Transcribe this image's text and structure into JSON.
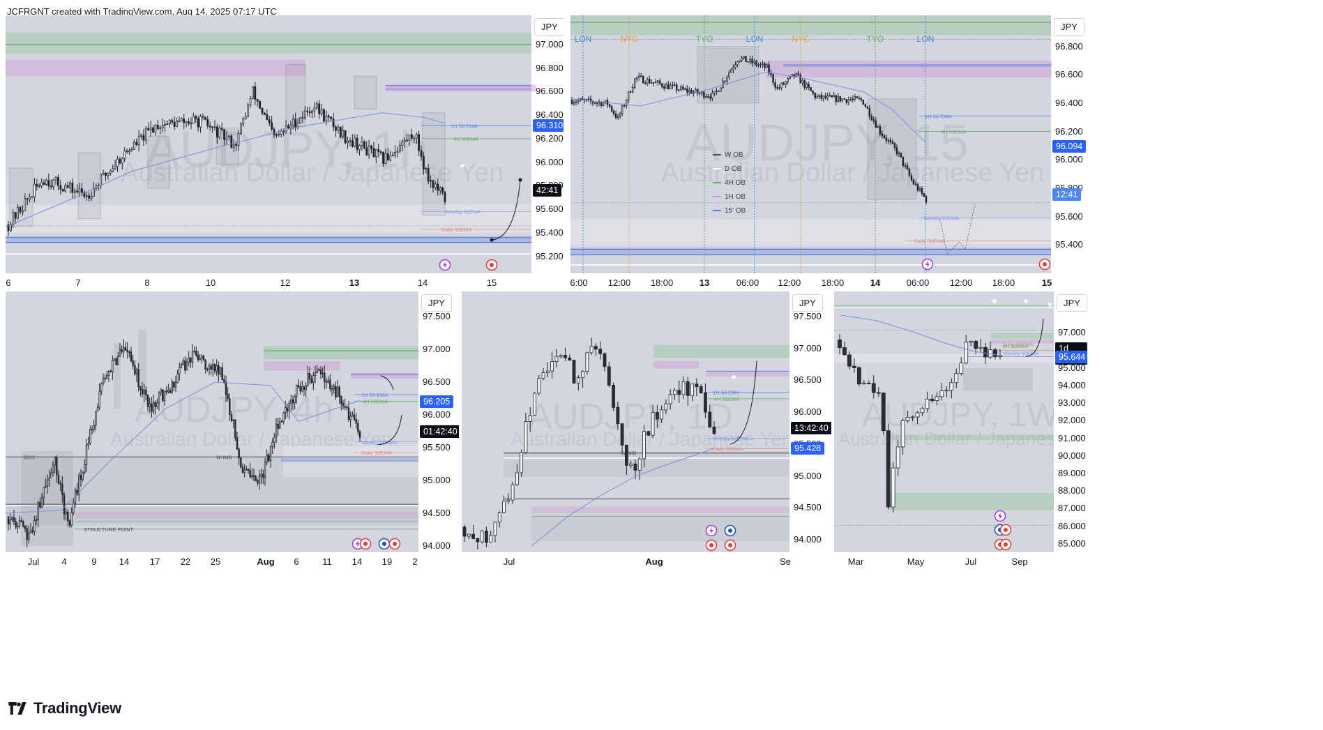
{
  "header": {
    "text": "JCFRGNT created with TradingView.com, Aug 14, 2025 07:17 UTC"
  },
  "footer": {
    "brand": "TradingView"
  },
  "colors": {
    "bg": "#d3d6de",
    "candle": "#1e2128",
    "ema": "#7b8fd8",
    "green_zone": "rgba(76,175,80,0.22)",
    "pink_zone": "rgba(206,147,216,0.38)",
    "blue_line": "#5b7de6",
    "label_blue": "#2962ff",
    "label_black": "#0c0e15"
  },
  "chart_data": [
    {
      "id": "p1",
      "type": "candlestick",
      "title": "AUDJPY, 1h",
      "subtitle": "Australian Dollar / Japanese Yen",
      "currency": "JPY",
      "ylim": [
        95.08,
        97.2
      ],
      "yticks": [
        "97.000",
        "96.800",
        "96.600",
        "96.400",
        "96.200",
        "96.000",
        "95.800",
        "95.600",
        "95.400",
        "95.200"
      ],
      "xticks": [
        "6",
        "7",
        "8",
        "10",
        "12",
        "13",
        "14",
        "15"
      ],
      "price_labels": {
        "ema": "96.310",
        "countdown": "42:41"
      },
      "annotations": [
        "1H 50 EMA",
        "4H 50EMA",
        "Weekly 50EMA",
        "Daily 50EMA"
      ]
    },
    {
      "id": "p2",
      "type": "candlestick",
      "title": "AUDJPY, 15",
      "subtitle": "Australian Dollar / Japanese Yen",
      "currency": "JPY",
      "ylim": [
        95.22,
        96.98
      ],
      "yticks": [
        "96.800",
        "96.600",
        "96.400",
        "96.200",
        "96.000",
        "95.800",
        "95.600",
        "95.400"
      ],
      "xticks": [
        "6:00",
        "12:00",
        "18:00",
        "13",
        "06:00",
        "12:00",
        "18:00",
        "14",
        "06:00",
        "12:00",
        "18:00",
        "15"
      ],
      "sessions": [
        "LON",
        "NYC",
        "TYO",
        "LON",
        "NYC",
        "TYO",
        "LON"
      ],
      "legend": [
        "W OB",
        "D OB",
        "4H OB",
        "1H OB",
        "15' OB"
      ],
      "price_labels": {
        "last": "96.094",
        "countdown": "12:41"
      },
      "annotations": [
        "1H 50 EMA",
        "4H 50EMA",
        "Weekly 50EMA",
        "Daily 50EMA"
      ]
    },
    {
      "id": "p3",
      "type": "candlestick",
      "title": "AUDJPY, 4h",
      "subtitle": "Australian Dollar / Japanese Yen",
      "currency": "JPY",
      "ylim": [
        93.95,
        97.65
      ],
      "yticks": [
        "97.500",
        "97.000",
        "96.500",
        "96.000",
        "95.500",
        "95.000",
        "94.500",
        "94.000"
      ],
      "xticks": [
        "Jul",
        "4",
        "9",
        "14",
        "17",
        "22",
        "25",
        "Aug",
        "6",
        "11",
        "14",
        "19",
        "2"
      ],
      "price_labels": {
        "ema": "96.205",
        "countdown": "01:42:40"
      },
      "annotations": [
        "BOS",
        "W IMB",
        "STRUCTURE POINT",
        "1H 50 EMA",
        "4H 50EMA",
        "Weekly 50EMA",
        "Daily 50EMA"
      ]
    },
    {
      "id": "p4",
      "type": "candlestick",
      "title": "AUDJPY, 1D",
      "subtitle": "Australian Dollar / Japanese Yen",
      "currency": "JPY",
      "ylim": [
        93.85,
        97.65
      ],
      "yticks": [
        "97.500",
        "97.000",
        "96.500",
        "96.000",
        "95.500",
        "95.000",
        "94.500",
        "94.000"
      ],
      "xticks": [
        "Jul",
        "Aug",
        "Se"
      ],
      "price_labels": {
        "countdown": "13:42:40",
        "weekly_ema": "95.428"
      },
      "annotations": [
        "W IMB",
        "1H 50 EMA",
        "4H 50EMA",
        "Weekly 50EMA",
        "Daily 50EMA"
      ]
    },
    {
      "id": "p5",
      "type": "candlestick",
      "title": "AUDJPY, 1W",
      "subtitle": "Australian Dollar / Japanese Yen",
      "currency": "JPY",
      "ylim": [
        84.6,
        98.8
      ],
      "yticks": [
        "97.000",
        "96.000",
        "95.000",
        "94.000",
        "93.000",
        "92.000",
        "91.000",
        "90.000",
        "89.000",
        "88.000",
        "87.000",
        "86.000",
        "85.000"
      ],
      "xticks": [
        "Mar",
        "May",
        "Jul",
        "Sep"
      ],
      "price_labels": {
        "countdown": "1d 14h",
        "weekly_ema": "95.644"
      },
      "annotations": [
        "Daily 50EMA",
        "4H 50EMA",
        "Weekly 50EMA"
      ]
    }
  ],
  "panel_text": {
    "p1": {
      "title": "AUDJPY, 1h",
      "subtitle": "Australian Dollar / Japanese Yen"
    },
    "p2": {
      "title": "AUDJPY, 15",
      "subtitle": "Australian Dollar / Japanese Yen"
    },
    "p3": {
      "title": "AUDJPY, 4h",
      "subtitle": "Australian Dollar / Japanese Yen"
    },
    "p4": {
      "title": "AUDJPY, 1D",
      "subtitle": "Australian Dollar / Japanese Yen"
    },
    "p5": {
      "title": "AUDJPY, 1W",
      "subtitle": "Australian Dollar / Japanese Yen"
    }
  }
}
